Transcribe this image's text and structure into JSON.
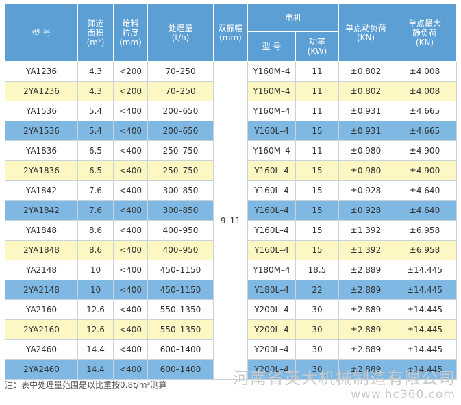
{
  "headers": {
    "model": "型 号",
    "area_l1": "筛选",
    "area_l2": "面积",
    "area_l3": "(m²)",
    "feed_l1": "给料",
    "feed_l2": "粒度",
    "feed_l3": "(mm)",
    "capacity_l1": "处理量",
    "capacity_l2": "(t/h)",
    "amplitude_l1": "双振幅",
    "amplitude_l2": "(mm)",
    "motor": "电机",
    "motor_model": "型 号",
    "power_l1": "功率",
    "power_l2": "(KW)",
    "dyn_l1": "单点动负荷",
    "dyn_l2": "(KN)",
    "static_l1": "单点最大",
    "static_l2": "静负荷",
    "static_l3": "(KN)"
  },
  "amplitude_value": "9–11",
  "rows": [
    {
      "model": "YA1236",
      "area": "4.3",
      "feed": "<200",
      "capacity": "70–250",
      "motor": "Y160M–4",
      "power": "11",
      "dyn": "±0.802",
      "static": "±4.008",
      "style": "white"
    },
    {
      "model": "2YA1236",
      "area": "4.3",
      "feed": "<200",
      "capacity": "70–250",
      "motor": "Y160M–4",
      "power": "11",
      "dyn": "±0.802",
      "static": "±4.008",
      "style": "yellow"
    },
    {
      "model": "YA1536",
      "area": "5.4",
      "feed": "<400",
      "capacity": "200–650",
      "motor": "Y160M–4",
      "power": "11",
      "dyn": "±0.931",
      "static": "±4.665",
      "style": "white"
    },
    {
      "model": "2YA1536",
      "area": "5.4",
      "feed": "<400",
      "capacity": "200–650",
      "motor": "Y160L–4",
      "power": "15",
      "dyn": "±0.931",
      "static": "±4.665",
      "style": "blue"
    },
    {
      "model": "YA1836",
      "area": "6.5",
      "feed": "<400",
      "capacity": "250–750",
      "motor": "Y160M–4",
      "power": "11",
      "dyn": "±0.980",
      "static": "±4.900",
      "style": "white"
    },
    {
      "model": "2YA1836",
      "area": "6.5",
      "feed": "<400",
      "capacity": "250–750",
      "motor": "Y160L–4",
      "power": "15",
      "dyn": "±0.980",
      "static": "±4.900",
      "style": "yellow"
    },
    {
      "model": "YA1842",
      "area": "7.6",
      "feed": "<400",
      "capacity": "300–850",
      "motor": "Y160L–4",
      "power": "15",
      "dyn": "±0.928",
      "static": "±4.640",
      "style": "white"
    },
    {
      "model": "2YA1842",
      "area": "7.6",
      "feed": "<400",
      "capacity": "300–850",
      "motor": "Y160L–4",
      "power": "15",
      "dyn": "±0.928",
      "static": "±4.640",
      "style": "blue"
    },
    {
      "model": "YA1848",
      "area": "8.6",
      "feed": "<400",
      "capacity": "400–950",
      "motor": "Y160L–4",
      "power": "15",
      "dyn": "±1.392",
      "static": "±6.958",
      "style": "white"
    },
    {
      "model": "2YA1848",
      "area": "8.6",
      "feed": "<400",
      "capacity": "400–950",
      "motor": "Y160L–4",
      "power": "15",
      "dyn": "±1.392",
      "static": "±6.958",
      "style": "yellow"
    },
    {
      "model": "YA2148",
      "area": "10",
      "feed": "<400",
      "capacity": "450–1150",
      "motor": "Y180M–4",
      "power": "18.5",
      "dyn": "±2.889",
      "static": "±14.445",
      "style": "white"
    },
    {
      "model": "2YA2148",
      "area": "10",
      "feed": "<400",
      "capacity": "450–1150",
      "motor": "Y180L–4",
      "power": "22",
      "dyn": "±2.889",
      "static": "±14.445",
      "style": "blue"
    },
    {
      "model": "YA2160",
      "area": "12.6",
      "feed": "<400",
      "capacity": "550–1350",
      "motor": "Y200L–4",
      "power": "30",
      "dyn": "±2.889",
      "static": "±14.445",
      "style": "white"
    },
    {
      "model": "2YA2160",
      "area": "12.6",
      "feed": "<400",
      "capacity": "550–1350",
      "motor": "Y200L–4",
      "power": "30",
      "dyn": "±2.889",
      "static": "±14.445",
      "style": "yellow"
    },
    {
      "model": "YA2460",
      "area": "14.4",
      "feed": "<400",
      "capacity": "600–1400",
      "motor": "Y200L–4",
      "power": "30",
      "dyn": "±2.889",
      "static": "±14.445",
      "style": "white"
    },
    {
      "model": "2YA2460",
      "area": "14.4",
      "feed": "<400",
      "capacity": "600–1400",
      "motor": "Y200L–4",
      "power": "30",
      "dyn": "±2.889",
      "static": "±14.445",
      "style": "blue"
    }
  ],
  "footer_note": "注：表中处理量范围是以比重按0.8t/m³测算",
  "watermark_company": "河南省英大机械制造有限公司",
  "watermark_url": "www.hc360.com",
  "colors": {
    "header": "#5b9fd4",
    "row_yellow": "#fdf7c3",
    "row_blue": "#7fb8e2"
  }
}
